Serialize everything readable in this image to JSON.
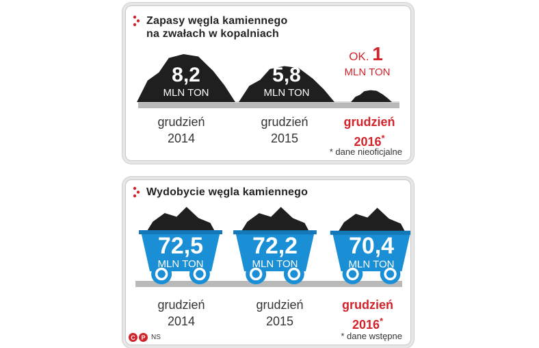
{
  "colors": {
    "accent": "#d2232a",
    "coal": "#1f1f1f",
    "cart": "#1a8fd6",
    "ground": "#b9b9b9"
  },
  "stocks": {
    "title_line1": "Zapasy węgla kamiennego",
    "title_line2": "na zwałach w kopalniach",
    "note": "* dane nieoficjalne",
    "items": [
      {
        "value_label": "8,2",
        "value_prefix": "",
        "unit": "MLN TON",
        "month": "grudzień",
        "year": "2014",
        "star": "",
        "highlight": false
      },
      {
        "value_label": "5,8",
        "value_prefix": "",
        "unit": "MLN TON",
        "month": "grudzień",
        "year": "2015",
        "star": "",
        "highlight": false
      },
      {
        "value_label": "1",
        "value_prefix": "OK.",
        "unit": "MLN TON",
        "month": "grudzień",
        "year": "2016",
        "star": "*",
        "highlight": true
      }
    ]
  },
  "output": {
    "title": "Wydobycie węgla kamiennego",
    "note": "* dane wstępne",
    "items": [
      {
        "value_label": "72,5",
        "unit": "MLN TON",
        "month": "grudzień",
        "year": "2014",
        "star": "",
        "highlight": false
      },
      {
        "value_label": "72,2",
        "unit": "MLN TON",
        "month": "grudzień",
        "year": "2015",
        "star": "",
        "highlight": false
      },
      {
        "value_label": "70,4",
        "unit": "MLN TON",
        "month": "grudzień",
        "year": "2016",
        "star": "*",
        "highlight": true
      }
    ]
  },
  "credit": {
    "agency": "NS",
    "mark_c": "C",
    "mark_p": "P"
  },
  "chart_data": [
    {
      "type": "bar",
      "title": "Zapasy węgla kamiennego na zwałach w kopalniach",
      "categories": [
        "grudzień 2014",
        "grudzień 2015",
        "grudzień 2016*"
      ],
      "values": [
        8.2,
        5.8,
        1
      ],
      "unit": "MLN TON",
      "annotations": [
        "* dane nieoficjalne"
      ]
    },
    {
      "type": "bar",
      "title": "Wydobycie węgla kamiennego",
      "categories": [
        "grudzień 2014",
        "grudzień 2015",
        "grudzień 2016*"
      ],
      "values": [
        72.5,
        72.2,
        70.4
      ],
      "unit": "MLN TON",
      "annotations": [
        "* dane wstępne"
      ]
    }
  ]
}
